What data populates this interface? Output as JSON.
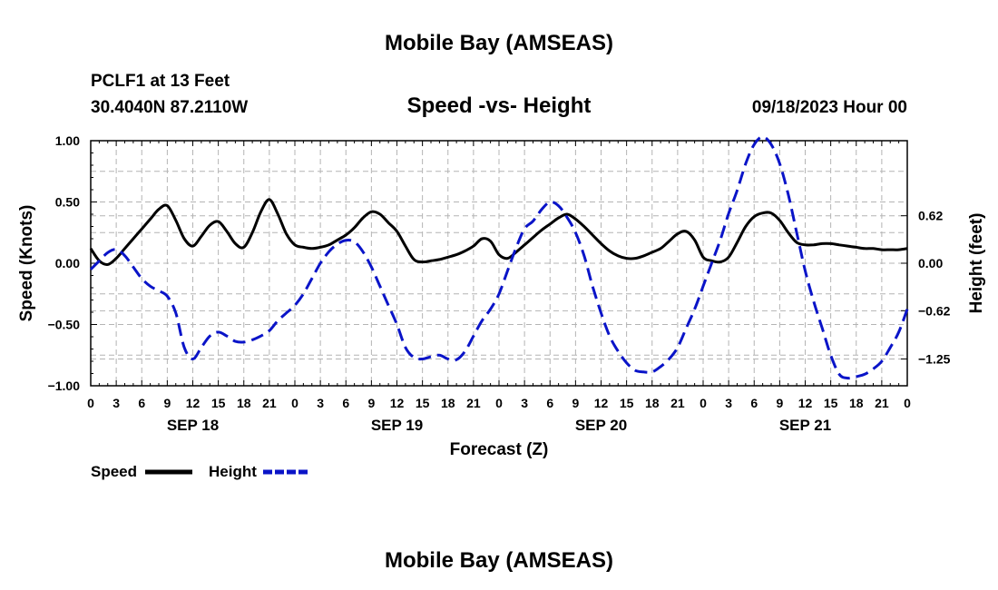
{
  "header": {
    "main_title": "Mobile Bay (AMSEAS)",
    "station": "PCLF1 at 13 Feet",
    "coords": "30.4040N  87.2110W",
    "date": "09/18/2023 Hour 00",
    "footer_title": "Mobile Bay (AMSEAS)"
  },
  "colors": {
    "speed": "#000000",
    "height": "#0a14c8",
    "grid": "#b4b4b4"
  },
  "chart_data": {
    "type": "line",
    "title": "Speed -vs- Height",
    "xlabel": "Forecast (Z)",
    "ylabel": "Speed (Knots)",
    "y2label": "Height (feet)",
    "x_range_hours": [
      0,
      96
    ],
    "ylim": [
      -1.0,
      1.0
    ],
    "y2lim": [
      -1.6,
      1.6
    ],
    "yticks": [
      1.0,
      0.5,
      0.0,
      -0.5,
      -1.0
    ],
    "ytick_labels": [
      "1.00",
      "0.50",
      "0.00",
      "−0.50",
      "−1.00"
    ],
    "y2ticks": [
      0.62,
      0.0,
      -0.62,
      -1.25
    ],
    "y2tick_labels": [
      "0.62",
      "0.00",
      "−0.62",
      "−1.25"
    ],
    "xtick_labels": [
      "0",
      "3",
      "6",
      "9",
      "12",
      "15",
      "18",
      "21",
      "0",
      "3",
      "6",
      "9",
      "12",
      "15",
      "18",
      "21",
      "0",
      "3",
      "6",
      "9",
      "12",
      "15",
      "18",
      "21",
      "0",
      "3",
      "6",
      "9",
      "12",
      "15",
      "18",
      "21",
      "0"
    ],
    "day_labels": [
      {
        "label": "SEP 18",
        "hour": 12
      },
      {
        "label": "SEP 19",
        "hour": 36
      },
      {
        "label": "SEP 20",
        "hour": 60
      },
      {
        "label": "SEP 21",
        "hour": 84
      }
    ],
    "grid": true,
    "legend": [
      {
        "name": "Speed",
        "style": "solid"
      },
      {
        "name": "Height",
        "style": "dashed"
      }
    ],
    "series": [
      {
        "name": "Speed",
        "axis": "left",
        "x": [
          0,
          1,
          2,
          3,
          4,
          5,
          6,
          7,
          8,
          9,
          10,
          11,
          12,
          13,
          14,
          15,
          16,
          17,
          18,
          19,
          20,
          21,
          22,
          23,
          24,
          25,
          26,
          27,
          28,
          29,
          30,
          31,
          32,
          33,
          34,
          35,
          36,
          37,
          38,
          39,
          40,
          41,
          42,
          43,
          44,
          45,
          46,
          47,
          48,
          49,
          50,
          51,
          52,
          53,
          54,
          55,
          56,
          57,
          58,
          59,
          60,
          61,
          62,
          63,
          64,
          65,
          66,
          67,
          68,
          69,
          70,
          71,
          72,
          73,
          74,
          75,
          76,
          77,
          78,
          79,
          80,
          81,
          82,
          83,
          84,
          85,
          86,
          87,
          88,
          89,
          90,
          91,
          92,
          93,
          94,
          95,
          96
        ],
        "values": [
          0.12,
          0.02,
          -0.01,
          0.04,
          0.12,
          0.2,
          0.28,
          0.36,
          0.44,
          0.47,
          0.35,
          0.2,
          0.14,
          0.22,
          0.31,
          0.34,
          0.26,
          0.16,
          0.13,
          0.25,
          0.42,
          0.52,
          0.4,
          0.24,
          0.15,
          0.13,
          0.12,
          0.13,
          0.15,
          0.19,
          0.23,
          0.29,
          0.37,
          0.42,
          0.4,
          0.33,
          0.26,
          0.14,
          0.03,
          0.01,
          0.02,
          0.03,
          0.05,
          0.07,
          0.1,
          0.14,
          0.2,
          0.18,
          0.07,
          0.04,
          0.09,
          0.15,
          0.21,
          0.27,
          0.32,
          0.37,
          0.4,
          0.36,
          0.3,
          0.23,
          0.16,
          0.1,
          0.06,
          0.04,
          0.04,
          0.06,
          0.09,
          0.12,
          0.18,
          0.24,
          0.26,
          0.19,
          0.05,
          0.02,
          0.01,
          0.05,
          0.17,
          0.3,
          0.38,
          0.41,
          0.41,
          0.35,
          0.25,
          0.17,
          0.15,
          0.15,
          0.16,
          0.16,
          0.15,
          0.14,
          0.13,
          0.12,
          0.12,
          0.11,
          0.11,
          0.11,
          0.12
        ]
      },
      {
        "name": "Height",
        "axis": "right",
        "x": [
          0,
          1,
          2,
          3,
          4,
          5,
          6,
          7,
          8,
          9,
          10,
          11,
          12,
          13,
          14,
          15,
          16,
          17,
          18,
          19,
          20,
          21,
          22,
          23,
          24,
          25,
          26,
          27,
          28,
          29,
          30,
          31,
          32,
          33,
          34,
          35,
          36,
          37,
          38,
          39,
          40,
          41,
          42,
          43,
          44,
          45,
          46,
          47,
          48,
          49,
          50,
          51,
          52,
          53,
          54,
          55,
          56,
          57,
          58,
          59,
          60,
          61,
          62,
          63,
          64,
          65,
          66,
          67,
          68,
          69,
          70,
          71,
          72,
          73,
          74,
          75,
          76,
          77,
          78,
          79,
          80,
          81,
          82,
          83,
          84,
          85,
          86,
          87,
          88,
          89,
          90,
          91,
          92,
          93,
          94,
          95,
          96
        ],
        "values": [
          -0.08,
          0.03,
          0.14,
          0.18,
          0.1,
          -0.05,
          -0.2,
          -0.3,
          -0.36,
          -0.43,
          -0.65,
          -1.1,
          -1.25,
          -1.1,
          -0.95,
          -0.9,
          -0.95,
          -1.02,
          -1.03,
          -1.0,
          -0.95,
          -0.88,
          -0.75,
          -0.65,
          -0.55,
          -0.4,
          -0.2,
          0.0,
          0.15,
          0.25,
          0.3,
          0.28,
          0.15,
          -0.05,
          -0.3,
          -0.55,
          -0.8,
          -1.1,
          -1.23,
          -1.25,
          -1.22,
          -1.2,
          -1.25,
          -1.26,
          -1.15,
          -0.95,
          -0.75,
          -0.6,
          -0.4,
          -0.1,
          0.2,
          0.45,
          0.55,
          0.7,
          0.8,
          0.75,
          0.6,
          0.4,
          0.1,
          -0.3,
          -0.65,
          -0.95,
          -1.15,
          -1.3,
          -1.4,
          -1.42,
          -1.42,
          -1.35,
          -1.25,
          -1.1,
          -0.85,
          -0.6,
          -0.3,
          0.0,
          0.3,
          0.65,
          0.95,
          1.3,
          1.55,
          1.65,
          1.55,
          1.3,
          0.9,
          0.4,
          -0.1,
          -0.5,
          -0.85,
          -1.2,
          -1.45,
          -1.5,
          -1.48,
          -1.45,
          -1.38,
          -1.28,
          -1.1,
          -0.9,
          -0.6
        ]
      }
    ]
  }
}
